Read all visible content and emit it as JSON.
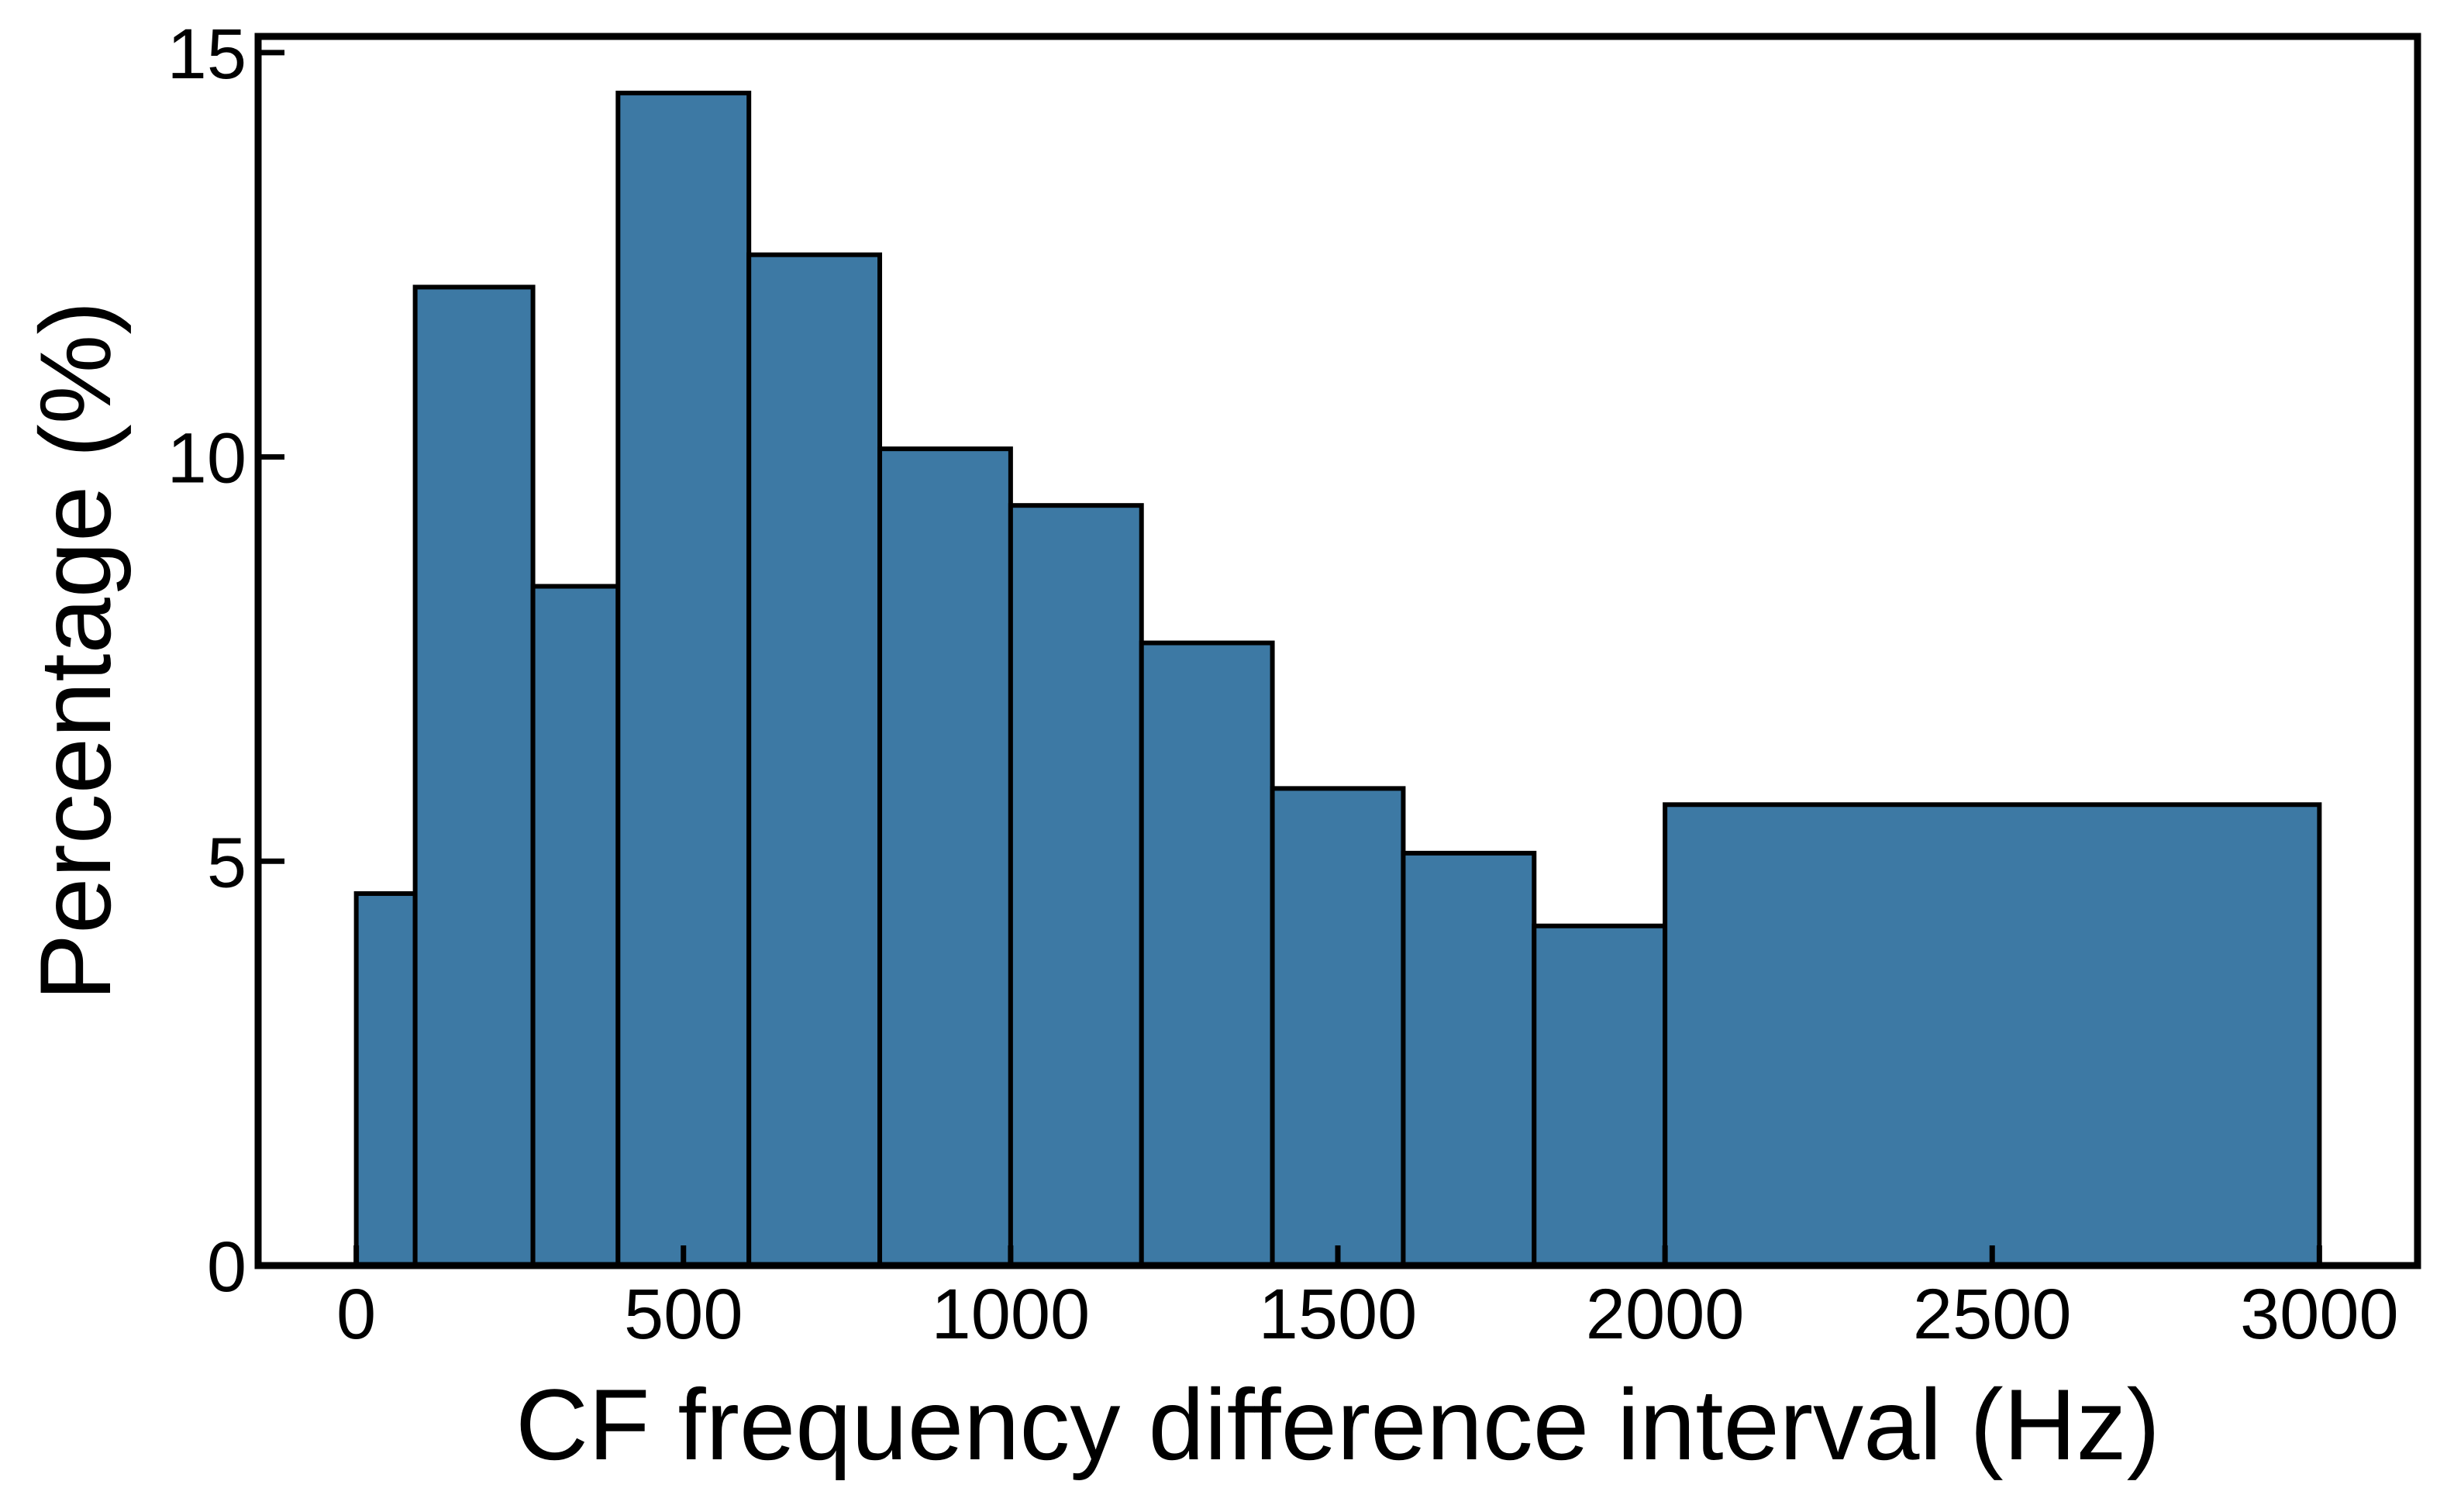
{
  "chart_data": {
    "type": "bar",
    "title": "",
    "xlabel": "CF frequency difference interval (Hz)",
    "ylabel": "Percentage (%)",
    "xlim": [
      -150,
      3150
    ],
    "ylim": [
      0,
      15.2
    ],
    "xticks": [
      0,
      500,
      1000,
      1500,
      2000,
      2500,
      3000
    ],
    "yticks": [
      0,
      5,
      10,
      15
    ],
    "grid": false,
    "legend": "none",
    "bar_color": "#3d79a4",
    "edge_color": "#000000",
    "bins": [
      {
        "x0": 0,
        "x1": 90,
        "value": 4.6
      },
      {
        "x0": 90,
        "x1": 270,
        "value": 12.1
      },
      {
        "x0": 270,
        "x1": 400,
        "value": 8.4
      },
      {
        "x0": 400,
        "x1": 600,
        "value": 14.5
      },
      {
        "x0": 600,
        "x1": 800,
        "value": 12.5
      },
      {
        "x0": 800,
        "x1": 1000,
        "value": 10.1
      },
      {
        "x0": 1000,
        "x1": 1200,
        "value": 9.4
      },
      {
        "x0": 1200,
        "x1": 1400,
        "value": 7.7
      },
      {
        "x0": 1400,
        "x1": 1600,
        "value": 5.9
      },
      {
        "x0": 1600,
        "x1": 1800,
        "value": 5.1
      },
      {
        "x0": 1800,
        "x1": 2000,
        "value": 4.2
      },
      {
        "x0": 2000,
        "x1": 3000,
        "value": 5.7
      }
    ]
  }
}
